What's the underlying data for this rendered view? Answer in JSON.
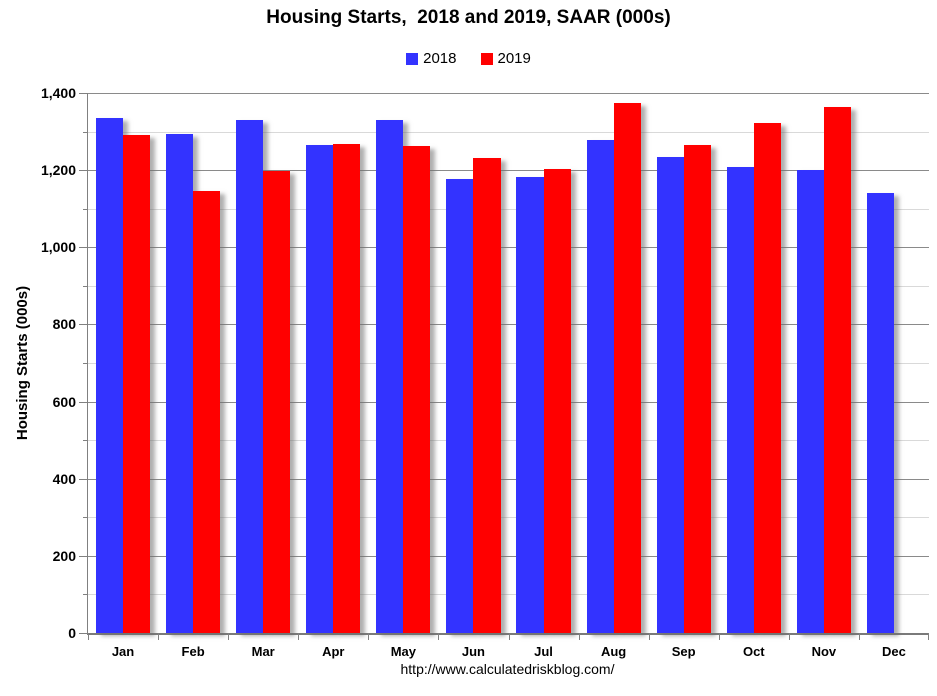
{
  "page": {
    "title": "Housing Starts,  2018 and 2019, SAAR (000s)"
  },
  "chart_data": {
    "type": "bar",
    "title": "Housing Starts,  2018 and 2019, SAAR (000s)",
    "xlabel": "",
    "ylabel": "Housing Starts (000s)",
    "categories": [
      "Jan",
      "Feb",
      "Mar",
      "Apr",
      "May",
      "Jun",
      "Jul",
      "Aug",
      "Sep",
      "Oct",
      "Nov",
      "Dec"
    ],
    "series": [
      {
        "name": "2018",
        "color": "#3333FF",
        "values": [
          1334,
          1293,
          1330,
          1265,
          1331,
          1177,
          1183,
          1278,
          1235,
          1209,
          1201,
          1142
        ]
      },
      {
        "name": "2019",
        "color": "#FF0000",
        "values": [
          1290,
          1147,
          1199,
          1269,
          1263,
          1232,
          1203,
          1374,
          1265,
          1323,
          1365,
          null
        ]
      }
    ],
    "ylim": [
      0,
      1400
    ],
    "y_major_step": 200,
    "y_minor_step": 100,
    "grid": true,
    "legend_position": "top",
    "annotation": "http://www.calculatedriskblog.com/"
  },
  "colors": {
    "bar_2018": "#3333FF",
    "bar_2019": "#FF0000",
    "grid_major": "#8a8a8a",
    "grid_minor": "#d9d9d9",
    "axis": "#808080"
  }
}
